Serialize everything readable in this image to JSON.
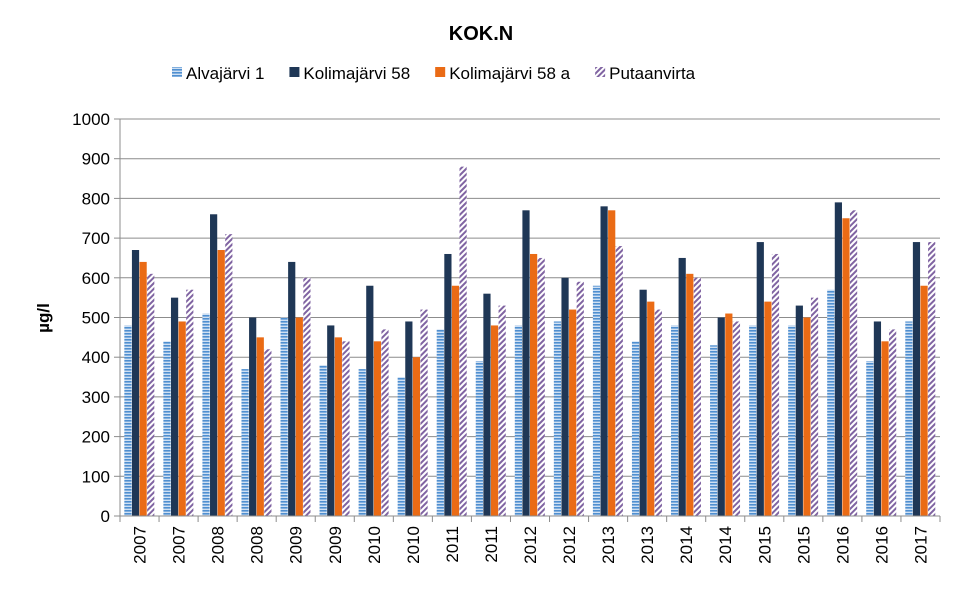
{
  "chart_data": {
    "type": "bar",
    "title": "KOK.N",
    "ylabel": "µg/l",
    "xlabel": "",
    "ylim": [
      0,
      1000
    ],
    "ytick_step": 100,
    "grid": true,
    "legend_position": "top",
    "categories": [
      "2007",
      "2007",
      "2008",
      "2008",
      "2009",
      "2009",
      "2010",
      "2010",
      "2011",
      "2011",
      "2012",
      "2012",
      "2013",
      "2013",
      "2014",
      "2014",
      "2015",
      "2015",
      "2016",
      "2016",
      "2017"
    ],
    "series": [
      {
        "name": "Alvajärvi 1",
        "color": "#4f8fd0",
        "pattern": "horizontal-stripes",
        "values": [
          480,
          440,
          510,
          370,
          500,
          380,
          370,
          350,
          470,
          390,
          480,
          490,
          580,
          440,
          480,
          430,
          480,
          480,
          570,
          390,
          490
        ]
      },
      {
        "name": "Kolimajärvi 58",
        "color": "#1f3756",
        "pattern": "solid",
        "values": [
          670,
          550,
          760,
          500,
          640,
          480,
          580,
          490,
          660,
          560,
          770,
          600,
          780,
          570,
          650,
          500,
          690,
          530,
          790,
          490,
          690
        ]
      },
      {
        "name": "Kolimajärvi 58 a",
        "color": "#ea6b15",
        "pattern": "solid",
        "values": [
          640,
          490,
          670,
          450,
          500,
          450,
          440,
          400,
          580,
          480,
          660,
          520,
          770,
          540,
          610,
          510,
          540,
          500,
          750,
          440,
          580
        ]
      },
      {
        "name": "Putaanvirta",
        "color": "#8064a2",
        "pattern": "diagonal-stripes",
        "values": [
          610,
          570,
          710,
          420,
          600,
          440,
          470,
          520,
          880,
          530,
          650,
          590,
          680,
          520,
          600,
          490,
          660,
          550,
          770,
          470,
          690
        ]
      }
    ]
  }
}
